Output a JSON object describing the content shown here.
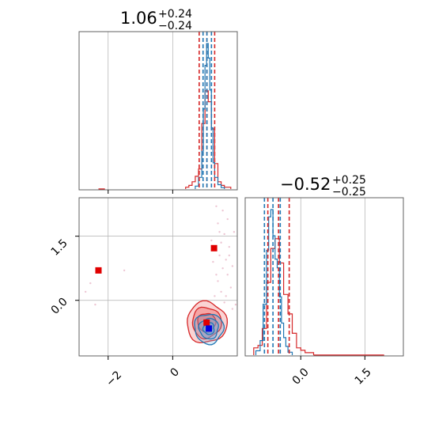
{
  "chart_data": {
    "type": "corner",
    "colors": {
      "red": "#d62728",
      "red_fill": "#f08080",
      "blue": "#1f77b4",
      "blue_fill": "#6fa8dc",
      "grid": "#b0b0b0",
      "axis": "#606060"
    },
    "titles": {
      "p1": {
        "main": "1.06",
        "plus": "+0.24",
        "minus": "−0.24"
      },
      "p2": {
        "main": "−0.52",
        "plus": "+0.25",
        "minus": "−0.25"
      }
    },
    "param1": {
      "xlim": [
        -2.9,
        2.0
      ],
      "ticks": [
        -2,
        0
      ],
      "tick_labels": [
        "−2",
        "0"
      ],
      "quantile_lines_red": [
        0.82,
        1.06,
        1.3
      ],
      "quantile_lines_blue": [
        0.94,
        1.06,
        1.2
      ]
    },
    "param2": {
      "lim": [
        -1.3,
        2.4
      ],
      "ticks": [
        0.0,
        1.5
      ],
      "tick_labels": [
        "0.0",
        "1.5"
      ],
      "quantile_lines_red": [
        -0.77,
        -0.52,
        -0.27
      ],
      "quantile_lines_blue": [
        -0.85,
        -0.65,
        -0.48
      ]
    },
    "hist_p1_red": {
      "bins": [
        0.4,
        0.5,
        0.6,
        0.7,
        0.8,
        0.9,
        1.0,
        1.1,
        1.2,
        1.3,
        1.4,
        1.5,
        1.6,
        1.7,
        1.8
      ],
      "counts": [
        1,
        2,
        4,
        7,
        11,
        36,
        54,
        48,
        33,
        14,
        4,
        2,
        1,
        1
      ]
    },
    "hist_p1_blue": {
      "bins": [
        0.7,
        0.8,
        0.9,
        0.95,
        1.0,
        1.05,
        1.1,
        1.15,
        1.2,
        1.25,
        1.3,
        1.4,
        1.5,
        1.6
      ],
      "counts": [
        2,
        8,
        26,
        55,
        85,
        100,
        90,
        68,
        42,
        18,
        8,
        3,
        1
      ]
    },
    "hist_p2_red": {
      "bins": [
        -1.1,
        -1.0,
        -0.9,
        -0.8,
        -0.7,
        -0.6,
        -0.5,
        -0.4,
        -0.3,
        -0.2,
        -0.1,
        0.0,
        0.1,
        0.2,
        0.3
      ],
      "counts": [
        3,
        4,
        11,
        30,
        44,
        48,
        38,
        25,
        17,
        9,
        3,
        2,
        1,
        1
      ]
    },
    "hist_p2_blue": {
      "bins": [
        -1.05,
        -0.95,
        -0.88,
        -0.8,
        -0.75,
        -0.7,
        -0.65,
        -0.6,
        -0.55,
        -0.5,
        -0.45,
        -0.4,
        -0.35,
        -0.3,
        -0.2
      ],
      "counts": [
        3,
        10,
        35,
        72,
        95,
        100,
        82,
        66,
        60,
        40,
        22,
        12,
        6,
        2
      ]
    },
    "contours_red": {
      "center": [
        1.05,
        -0.52
      ],
      "radii": [
        [
          0.62,
          0.48
        ],
        [
          0.45,
          0.36
        ],
        [
          0.28,
          0.22
        ]
      ]
    },
    "contours_blue": {
      "center": [
        1.12,
        -0.66
      ],
      "radii": [
        [
          0.45,
          0.35
        ],
        [
          0.3,
          0.24
        ],
        [
          0.17,
          0.14
        ]
      ]
    },
    "markers": {
      "red": [
        [
          -2.3,
          0.7
        ],
        [
          1.28,
          1.22
        ],
        [
          1.05,
          -0.52
        ]
      ],
      "blue": [
        [
          1.12,
          -0.66
        ]
      ]
    },
    "scatter_points": [
      [
        1.35,
        2.2
      ],
      [
        1.55,
        2.1
      ],
      [
        1.7,
        1.9
      ],
      [
        1.4,
        1.8
      ],
      [
        1.6,
        1.55
      ],
      [
        1.5,
        1.35
      ],
      [
        1.75,
        1.25
      ],
      [
        1.45,
        1.05
      ],
      [
        1.65,
        0.95
      ],
      [
        1.55,
        0.75
      ],
      [
        1.7,
        0.6
      ],
      [
        1.4,
        0.45
      ],
      [
        1.8,
        0.3
      ],
      [
        1.3,
        0.1
      ],
      [
        1.6,
        -0.05
      ],
      [
        1.85,
        -0.2
      ],
      [
        1.25,
        0.9
      ],
      [
        1.9,
        1.6
      ],
      [
        1.5,
        0.2
      ],
      [
        1.35,
        0.6
      ],
      [
        -1.5,
        0.7
      ],
      [
        -2.4,
        -0.1
      ],
      [
        -2.55,
        0.4
      ],
      [
        -2.7,
        0.2
      ],
      [
        1.75,
        1.05
      ],
      [
        1.2,
        1.4
      ],
      [
        1.85,
        0.8
      ],
      [
        1.65,
        0.1
      ],
      [
        1.95,
        -0.1
      ],
      [
        1.45,
        1.6
      ]
    ]
  }
}
